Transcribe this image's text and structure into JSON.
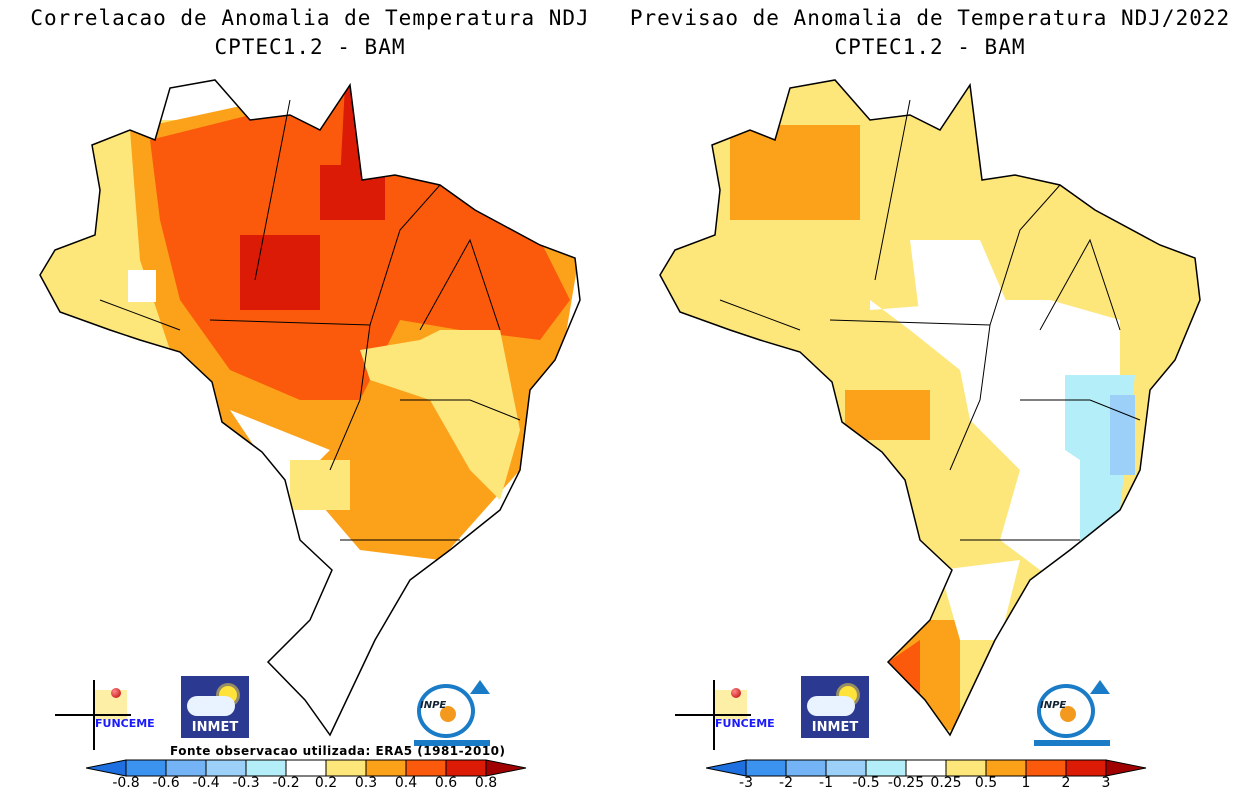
{
  "panels": [
    {
      "title_line1": "Correlacao de Anomalia de Temperatura NDJ",
      "title_line2": "CPTEC1.2 - BAM",
      "source_note": "Fonte observacao utilizada: ERA5 (1981-2010)",
      "colorbar": {
        "ticks": [
          "-0.8",
          "-0.6",
          "-0.4",
          "-0.3",
          "-0.2",
          "0.2",
          "0.3",
          "0.4",
          "0.6",
          "0.8"
        ],
        "colors": [
          "#1e6fe0",
          "#3c92ef",
          "#74b3f5",
          "#9dd0f8",
          "#b4eef8",
          "#ffffff",
          "#fde67a",
          "#fca11a",
          "#fb5a0c",
          "#dc1b06",
          "#a00000"
        ]
      }
    },
    {
      "title_line1": "Previsao de Anomalia de Temperatura NDJ/2022",
      "title_line2": "CPTEC1.2 - BAM",
      "colorbar": {
        "ticks": [
          "-3",
          "-2",
          "-1",
          "-0.5",
          "-0.25",
          "0.25",
          "0.5",
          "1",
          "2",
          "3"
        ],
        "colors": [
          "#1e6fe0",
          "#3c92ef",
          "#74b3f5",
          "#9dd0f8",
          "#b4eef8",
          "#ffffff",
          "#fde67a",
          "#fca11a",
          "#fb5a0c",
          "#dc1b06",
          "#a00000"
        ]
      }
    }
  ],
  "logos": {
    "funceme": "FUNCEME",
    "inmet": "INMET",
    "inpe": "INPE"
  }
}
